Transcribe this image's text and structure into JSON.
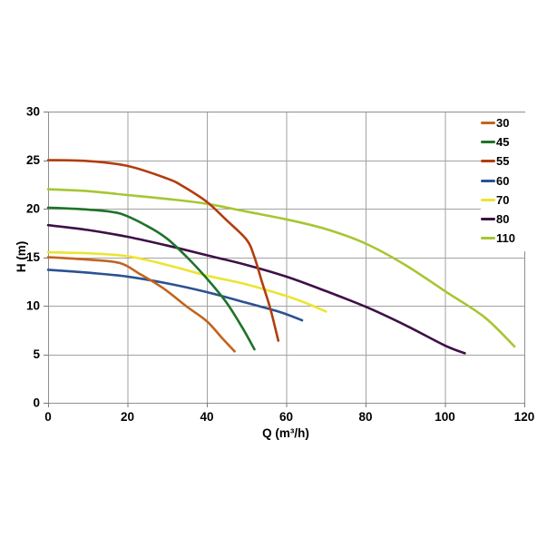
{
  "figure": {
    "background": "#ffffff"
  },
  "chart_data": {
    "type": "line",
    "title": "",
    "xlabel": "Q (m³/h)",
    "ylabel": "H (m)",
    "xlim": [
      0,
      120
    ],
    "ylim": [
      0,
      30
    ],
    "xticks": [
      0,
      20,
      40,
      60,
      80,
      100,
      120
    ],
    "yticks": [
      0,
      5,
      10,
      15,
      20,
      25,
      30
    ],
    "grid": true,
    "legend_position": "top-right-inside",
    "colors": {
      "grid": "#a2a2a2",
      "border": "#8f8f8f",
      "tick": "#7a7a7a",
      "text": "#000000",
      "background": "#ffffff"
    },
    "series": [
      {
        "name": "30",
        "color": "#c2641e",
        "points": [
          [
            0,
            15.0
          ],
          [
            10,
            14.75
          ],
          [
            18,
            14.4
          ],
          [
            23,
            13.3
          ],
          [
            29,
            11.8
          ],
          [
            35,
            9.9
          ],
          [
            40,
            8.4
          ],
          [
            44,
            6.6
          ],
          [
            47,
            5.3
          ]
        ]
      },
      {
        "name": "45",
        "color": "#1e7328",
        "points": [
          [
            0,
            20.1
          ],
          [
            10,
            19.9
          ],
          [
            18,
            19.5
          ],
          [
            25,
            18.2
          ],
          [
            30,
            16.9
          ],
          [
            35,
            15.0
          ],
          [
            40,
            12.8
          ],
          [
            45,
            10.3
          ],
          [
            49,
            7.7
          ],
          [
            52,
            5.5
          ]
        ]
      },
      {
        "name": "55",
        "color": "#b23d0e",
        "points": [
          [
            0,
            25.0
          ],
          [
            10,
            24.9
          ],
          [
            20,
            24.4
          ],
          [
            30,
            23.1
          ],
          [
            34,
            22.3
          ],
          [
            40,
            20.7
          ],
          [
            45,
            18.8
          ],
          [
            50,
            16.8
          ],
          [
            52,
            15.0
          ],
          [
            54,
            12.3
          ],
          [
            56,
            9.7
          ],
          [
            58,
            6.4
          ]
        ]
      },
      {
        "name": "60",
        "color": "#2b5291",
        "points": [
          [
            0,
            13.7
          ],
          [
            10,
            13.4
          ],
          [
            20,
            13.0
          ],
          [
            30,
            12.3
          ],
          [
            40,
            11.4
          ],
          [
            50,
            10.3
          ],
          [
            58,
            9.4
          ],
          [
            64,
            8.5
          ]
        ]
      },
      {
        "name": "70",
        "color": "#ece432",
        "points": [
          [
            0,
            15.5
          ],
          [
            10,
            15.4
          ],
          [
            20,
            15.1
          ],
          [
            30,
            14.2
          ],
          [
            40,
            13.1
          ],
          [
            50,
            12.2
          ],
          [
            60,
            11.0
          ],
          [
            66,
            10.1
          ],
          [
            70,
            9.4
          ]
        ]
      },
      {
        "name": "80",
        "color": "#3f1047",
        "points": [
          [
            0,
            18.3
          ],
          [
            10,
            17.8
          ],
          [
            20,
            17.1
          ],
          [
            30,
            16.2
          ],
          [
            40,
            15.2
          ],
          [
            50,
            14.2
          ],
          [
            60,
            13.0
          ],
          [
            70,
            11.5
          ],
          [
            80,
            9.9
          ],
          [
            90,
            8.0
          ],
          [
            100,
            5.9
          ],
          [
            105,
            5.1
          ]
        ]
      },
      {
        "name": "110",
        "color": "#a6c632",
        "points": [
          [
            0,
            22.0
          ],
          [
            10,
            21.8
          ],
          [
            20,
            21.4
          ],
          [
            30,
            21.0
          ],
          [
            40,
            20.5
          ],
          [
            50,
            19.7
          ],
          [
            60,
            18.9
          ],
          [
            70,
            17.9
          ],
          [
            80,
            16.4
          ],
          [
            90,
            14.2
          ],
          [
            100,
            11.5
          ],
          [
            110,
            8.8
          ],
          [
            117.5,
            5.8
          ]
        ]
      }
    ],
    "draw_order": [
      "60",
      "70",
      "80",
      "110",
      "30",
      "45",
      "55"
    ]
  }
}
